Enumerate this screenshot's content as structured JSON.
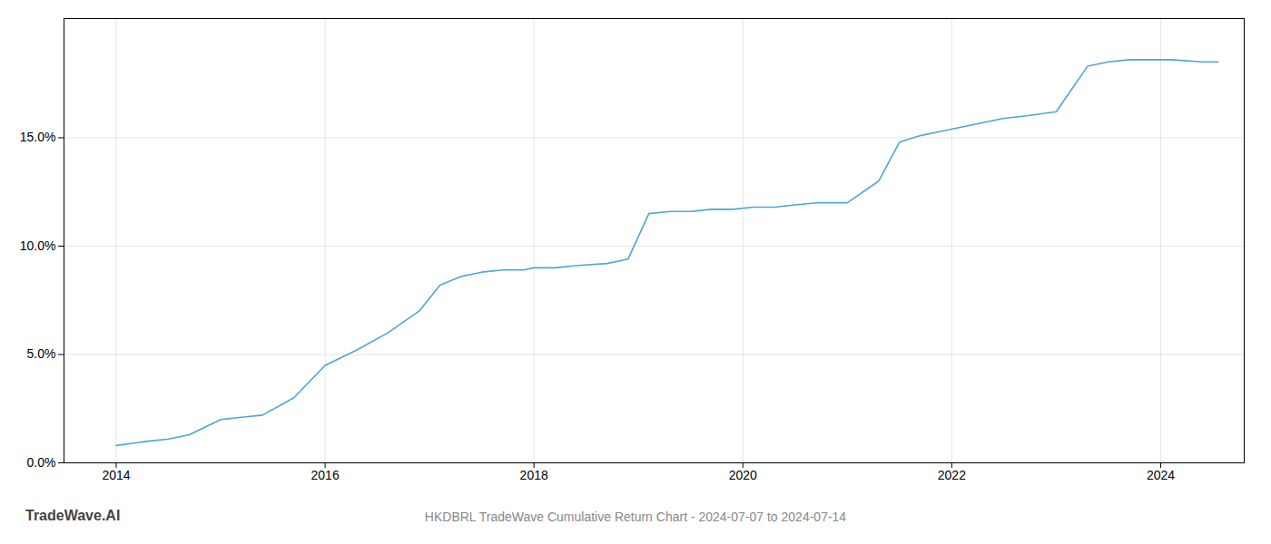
{
  "chart_data": {
    "type": "line",
    "title": "HKDBRL TradeWave Cumulative Return Chart - 2024-07-07 to 2024-07-14",
    "annotations": [
      "TradeWave.AI"
    ],
    "color": "#4da6d8",
    "grid": true,
    "x": [
      2014.0,
      2014.15,
      2014.3,
      2014.5,
      2014.7,
      2015.0,
      2015.2,
      2015.4,
      2015.7,
      2016.0,
      2016.3,
      2016.6,
      2016.9,
      2017.1,
      2017.3,
      2017.5,
      2017.7,
      2017.9,
      2018.0,
      2018.2,
      2018.4,
      2018.7,
      2018.9,
      2019.1,
      2019.3,
      2019.5,
      2019.7,
      2019.9,
      2020.1,
      2020.3,
      2020.5,
      2020.7,
      2021.0,
      2021.3,
      2021.5,
      2021.7,
      2021.9,
      2022.1,
      2022.3,
      2022.5,
      2022.7,
      2023.0,
      2023.3,
      2023.5,
      2023.7,
      2023.9,
      2024.1,
      2024.4,
      2024.55
    ],
    "values": [
      0.008,
      0.009,
      0.01,
      0.011,
      0.013,
      0.02,
      0.021,
      0.022,
      0.03,
      0.045,
      0.052,
      0.06,
      0.07,
      0.082,
      0.086,
      0.088,
      0.089,
      0.089,
      0.09,
      0.09,
      0.091,
      0.092,
      0.094,
      0.115,
      0.116,
      0.116,
      0.117,
      0.117,
      0.118,
      0.118,
      0.119,
      0.12,
      0.12,
      0.13,
      0.148,
      0.151,
      0.153,
      0.155,
      0.157,
      0.159,
      0.16,
      0.162,
      0.183,
      0.185,
      0.186,
      0.186,
      0.186,
      0.185,
      0.185
    ],
    "xlim": [
      2013.5,
      2024.8
    ],
    "xticks": [
      2014,
      2016,
      2018,
      2020,
      2022,
      2024
    ],
    "ylim": [
      0.0,
      0.205
    ],
    "yticks": [
      {
        "value": 0.0,
        "label": "0.0%"
      },
      {
        "value": 0.05,
        "label": "5.0%"
      },
      {
        "value": 0.1,
        "label": "10.0%"
      },
      {
        "value": 0.15,
        "label": "15.0%"
      }
    ]
  }
}
